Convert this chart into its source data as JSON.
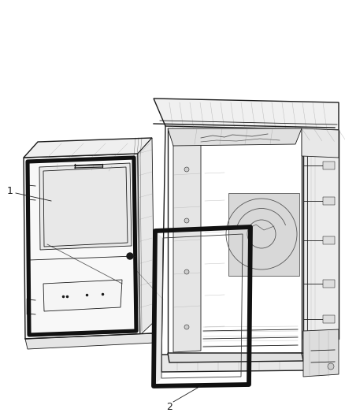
{
  "background_color": "#ffffff",
  "figure_width": 4.38,
  "figure_height": 5.33,
  "dpi": 100,
  "line_color": "#1a1a1a",
  "light_line_color": "#555555",
  "lighter_line_color": "#888888",
  "label1": "1",
  "label2": "2",
  "lw_seal": 3.2,
  "lw_thick": 1.8,
  "lw_med": 1.0,
  "lw_thin": 0.6,
  "lw_xtra": 0.35
}
